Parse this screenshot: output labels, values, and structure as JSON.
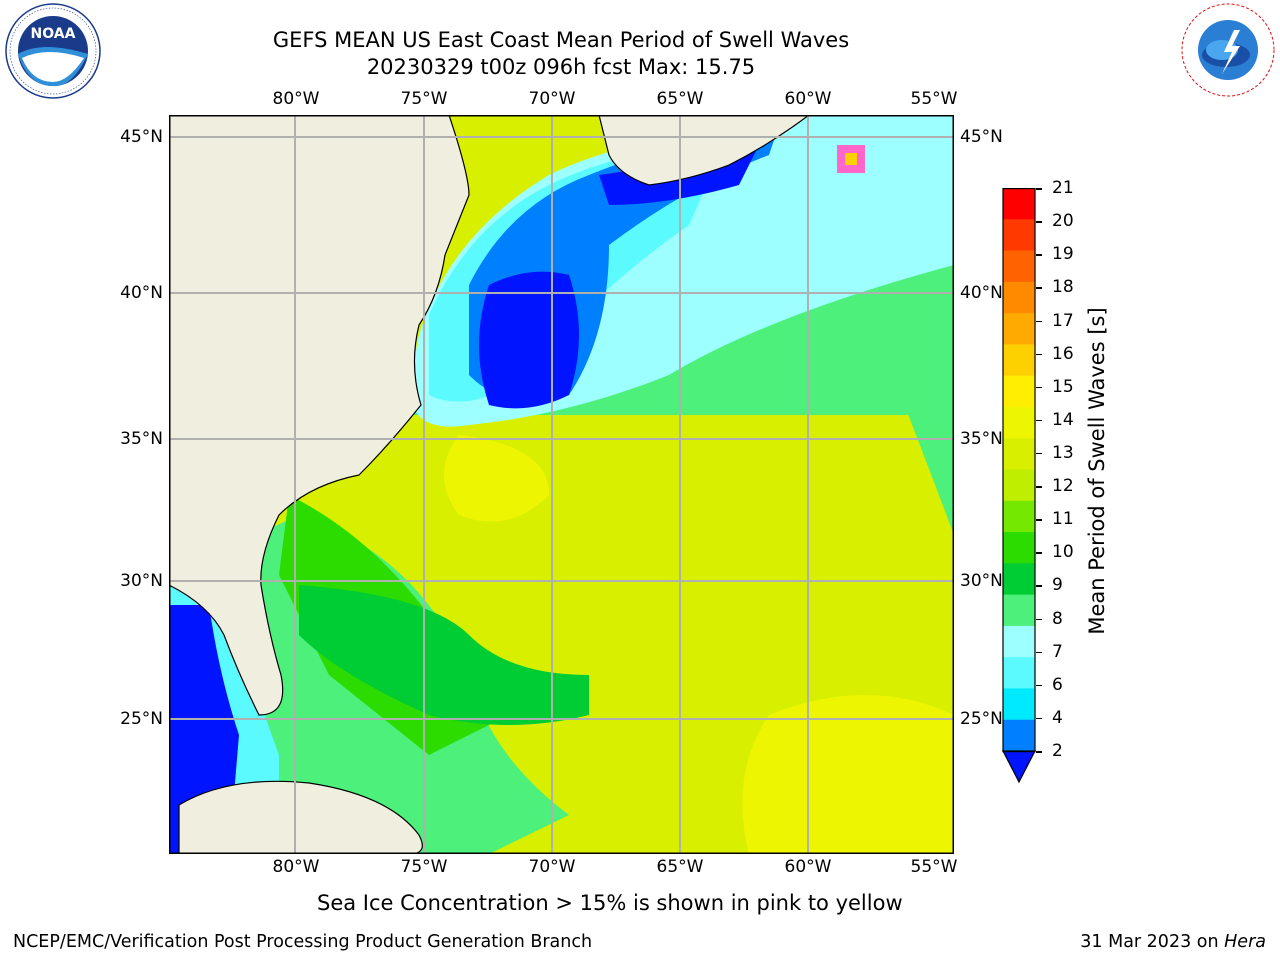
{
  "title": {
    "line1": "GEFS MEAN US East Coast Mean Period of Swell Waves",
    "line2": "20230329 t00z 096h fcst   Max: 15.75"
  },
  "map": {
    "lon_labels": [
      "80°W",
      "75°W",
      "70°W",
      "65°W",
      "60°W",
      "55°W"
    ],
    "lat_labels": [
      "45°N",
      "40°N",
      "35°N",
      "30°N",
      "25°N"
    ],
    "gridlines": true,
    "land_color": "#efeedf",
    "coastline_color": "#000000"
  },
  "colorbar": {
    "label": "Mean Period of Swell Waves [s]",
    "ticks": [
      "21",
      "20",
      "19",
      "18",
      "17",
      "16",
      "15",
      "14",
      "13",
      "12",
      "11",
      "10",
      "9",
      "8",
      "7",
      "6",
      "4",
      "2"
    ],
    "colors_top_to_bottom": [
      "#ff0000",
      "#ff3a00",
      "#ff6200",
      "#ff8a00",
      "#ffaa00",
      "#ffd000",
      "#ffee00",
      "#eef500",
      "#d8f000",
      "#c0ee00",
      "#75e800",
      "#2cdc00",
      "#00cc33",
      "#4cf07a",
      "#9dffff",
      "#5afaff",
      "#00eaff",
      "#0080ff"
    ],
    "extend_color": "#0014ff"
  },
  "caption": "Sea Ice Concentration > 15% is shown in pink to yellow",
  "footer": {
    "left": "NCEP/EMC/Verification Post Processing Product Generation Branch",
    "date": "31 Mar 2023 on ",
    "host": "Hera"
  },
  "logos": {
    "noaa_text": "NOAA",
    "noaa_ring": "NATIONAL OCEANIC AND ATMOSPHERIC ADMINISTRATION · U.S. DEPARTMENT OF COMMERCE",
    "nws_ring": "NATIONAL WEATHER SERVICE"
  }
}
